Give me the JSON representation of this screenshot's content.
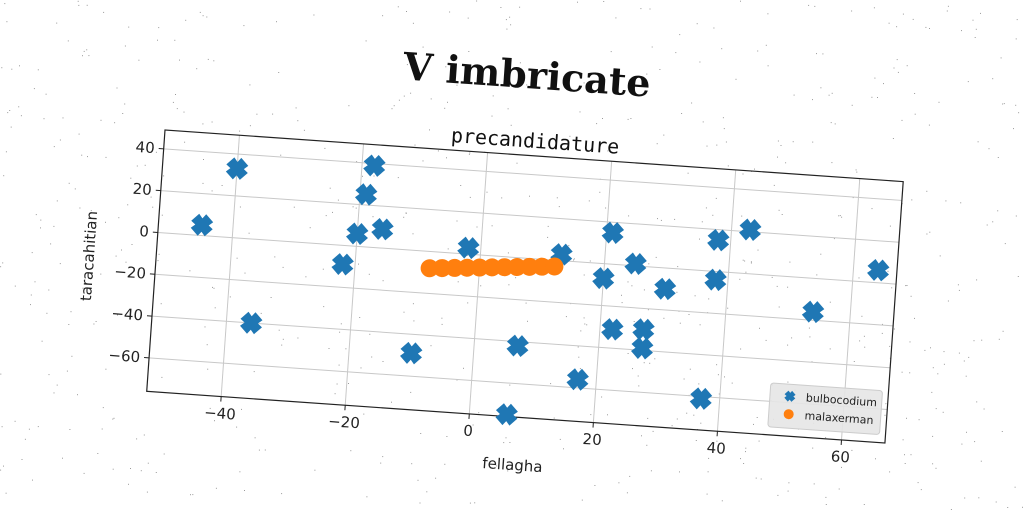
{
  "chart_data": {
    "type": "scatter",
    "suptitle": "V imbricate",
    "title": "precandidature",
    "xlabel": "fellagha",
    "ylabel": "taracahitian",
    "xlim": [
      -52,
      67
    ],
    "ylim": [
      -76,
      49
    ],
    "xticks": [
      -40,
      -20,
      0,
      20,
      40,
      60
    ],
    "yticks": [
      -60,
      -40,
      -20,
      0,
      20,
      40
    ],
    "grid": true,
    "legend_position": "lower-right",
    "series": [
      {
        "name": "bulbocodium",
        "marker": "X",
        "color": "#1f77b4",
        "points": [
          {
            "x": -45,
            "y": 5
          },
          {
            "x": -40,
            "y": 33
          },
          {
            "x": -36,
            "y": -40
          },
          {
            "x": -22,
            "y": -9
          },
          {
            "x": -20,
            "y": 6
          },
          {
            "x": -19,
            "y": 25
          },
          {
            "x": -18,
            "y": 39
          },
          {
            "x": -16,
            "y": 9
          },
          {
            "x": -10,
            "y": -49
          },
          {
            "x": -2,
            "y": 3
          },
          {
            "x": 7,
            "y": -42
          },
          {
            "x": 6,
            "y": -75
          },
          {
            "x": 13,
            "y": 3
          },
          {
            "x": 17,
            "y": -56
          },
          {
            "x": 21,
            "y": 15
          },
          {
            "x": 20,
            "y": -7
          },
          {
            "x": 22,
            "y": -31
          },
          {
            "x": 25,
            "y": 1
          },
          {
            "x": 27,
            "y": -30
          },
          {
            "x": 27,
            "y": -39
          },
          {
            "x": 30,
            "y": -10
          },
          {
            "x": 38,
            "y": 15
          },
          {
            "x": 38,
            "y": -4
          },
          {
            "x": 37,
            "y": -61
          },
          {
            "x": 43,
            "y": 21
          },
          {
            "x": 54,
            "y": -16
          },
          {
            "x": 64,
            "y": 6
          }
        ]
      },
      {
        "name": "malaxerman",
        "marker": "o",
        "color": "#ff7f0e",
        "points": [
          {
            "x": -8,
            "y": -8
          },
          {
            "x": -6,
            "y": -7.5
          },
          {
            "x": -4,
            "y": -7
          },
          {
            "x": -2,
            "y": -6.5
          },
          {
            "x": 0,
            "y": -6
          },
          {
            "x": 2,
            "y": -5.5
          },
          {
            "x": 4,
            "y": -5
          },
          {
            "x": 6,
            "y": -4.5
          },
          {
            "x": 8,
            "y": -4
          },
          {
            "x": 10,
            "y": -3.5
          },
          {
            "x": 12,
            "y": -3
          }
        ]
      }
    ]
  }
}
